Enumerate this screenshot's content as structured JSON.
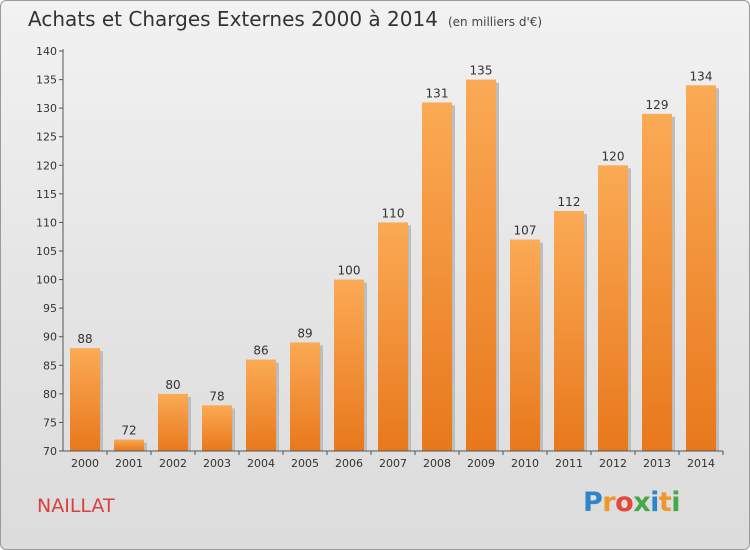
{
  "title": "Achats et Charges Externes 2000 à 2014",
  "subtitle": "(en milliers d'€)",
  "commune": "NAILLAT",
  "logo": {
    "letters": [
      "P",
      "r",
      "o",
      "x",
      "i",
      "t",
      "i"
    ],
    "colors": [
      "#2e86c8",
      "#f0962a",
      "#e8453c",
      "#47a847",
      "#2e86c8",
      "#f0962a",
      "#47a847"
    ]
  },
  "colors": {
    "bar_light": "#fbaa55",
    "bar_dark": "#e8781c",
    "axis": "#555555",
    "grid": "#cfcfcf",
    "text": "#333333"
  },
  "chart_data": {
    "type": "bar",
    "categories": [
      "2000",
      "2001",
      "2002",
      "2003",
      "2004",
      "2005",
      "2006",
      "2007",
      "2008",
      "2009",
      "2010",
      "2011",
      "2012",
      "2013",
      "2014"
    ],
    "values": [
      88,
      72,
      80,
      78,
      86,
      89,
      100,
      110,
      131,
      135,
      107,
      112,
      120,
      129,
      134
    ],
    "ylim": [
      70,
      140
    ],
    "yticks": [
      70,
      75,
      80,
      85,
      90,
      95,
      100,
      105,
      110,
      115,
      120,
      125,
      130,
      135,
      140
    ],
    "xlabel": "",
    "ylabel": "",
    "grid": false
  }
}
